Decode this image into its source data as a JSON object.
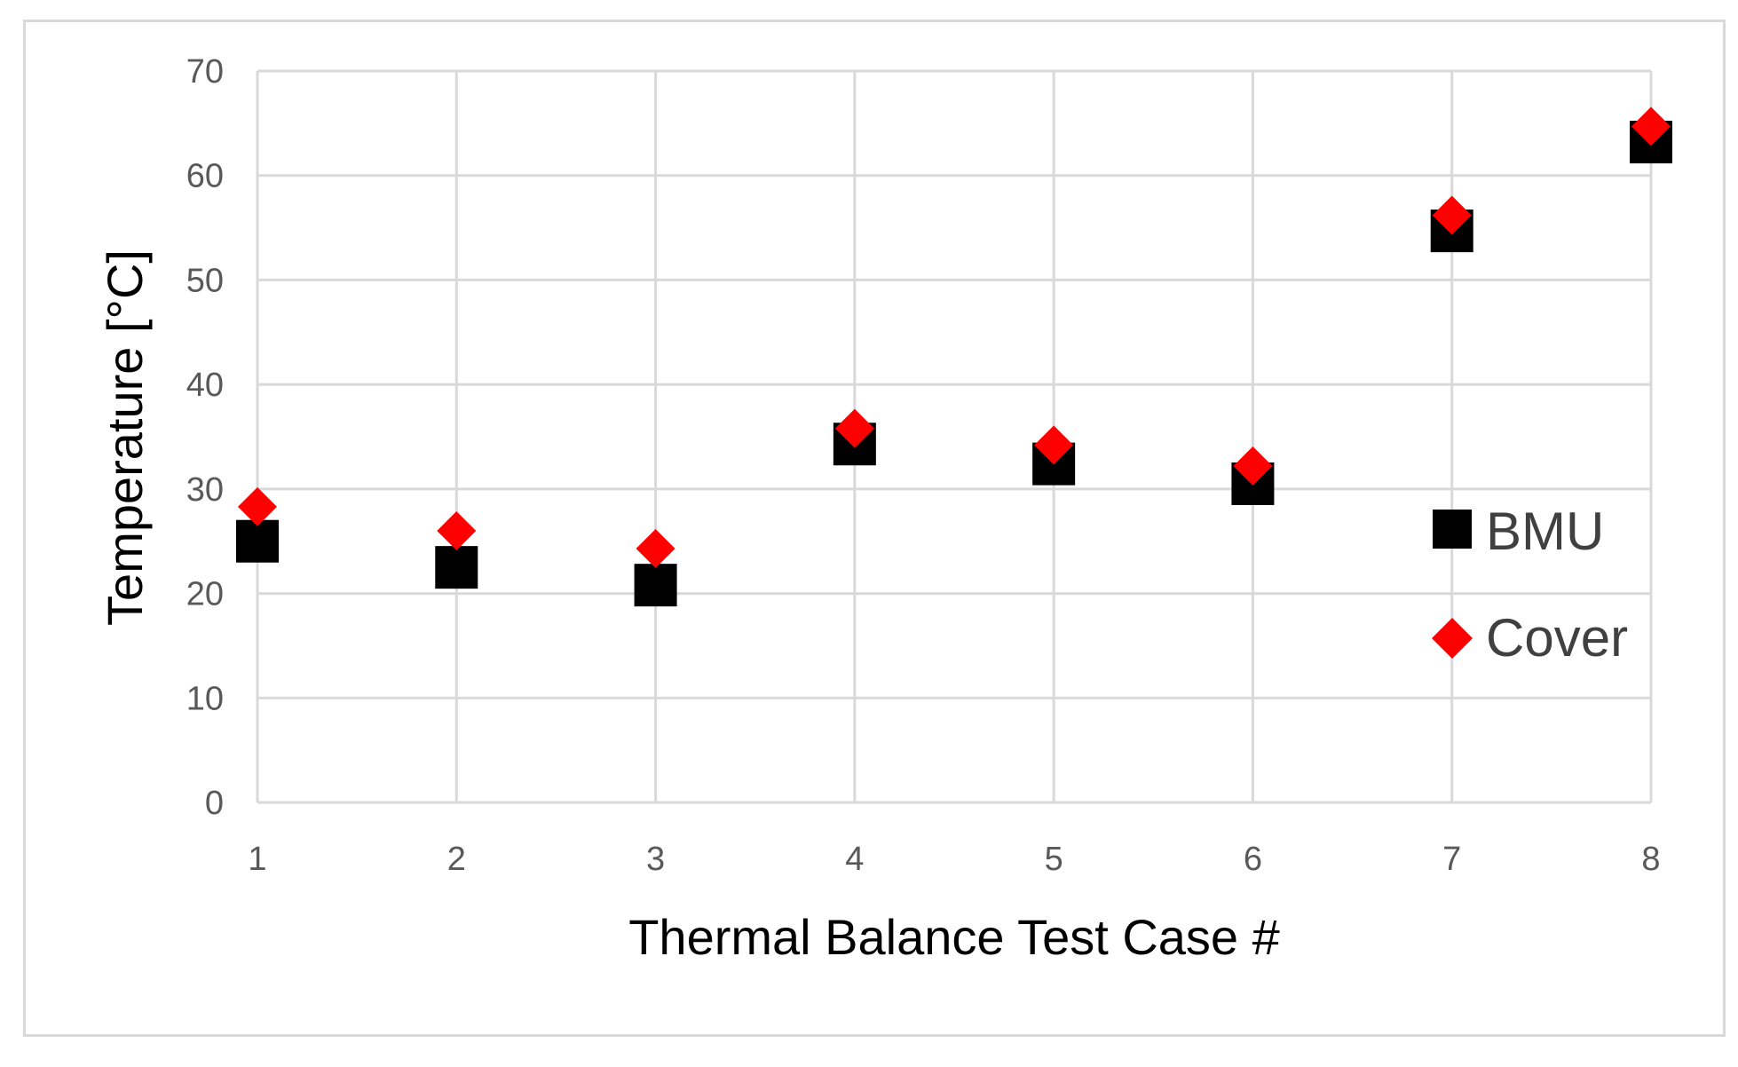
{
  "chart_data": {
    "type": "scatter",
    "title": "",
    "xlabel": "Thermal Balance Test Case #",
    "ylabel": "Temperature  [°C]",
    "x": [
      1,
      2,
      3,
      4,
      5,
      6,
      7,
      8
    ],
    "xlim": [
      1,
      8
    ],
    "ylim": [
      0,
      70
    ],
    "x_ticks": [
      "1",
      "2",
      "3",
      "4",
      "5",
      "6",
      "7",
      "8"
    ],
    "y_ticks": [
      "0",
      "10",
      "20",
      "30",
      "40",
      "50",
      "60",
      "70"
    ],
    "grid": true,
    "legend_position": "right",
    "series": [
      {
        "name": "BMU",
        "marker": "square",
        "color": "#000000",
        "values": [
          25.0,
          22.5,
          20.8,
          34.3,
          32.4,
          30.5,
          54.7,
          63.2
        ]
      },
      {
        "name": "Cover",
        "marker": "diamond",
        "color": "#ff0000",
        "values": [
          28.3,
          26.0,
          24.3,
          35.8,
          34.2,
          32.2,
          56.2,
          64.7
        ]
      }
    ]
  }
}
